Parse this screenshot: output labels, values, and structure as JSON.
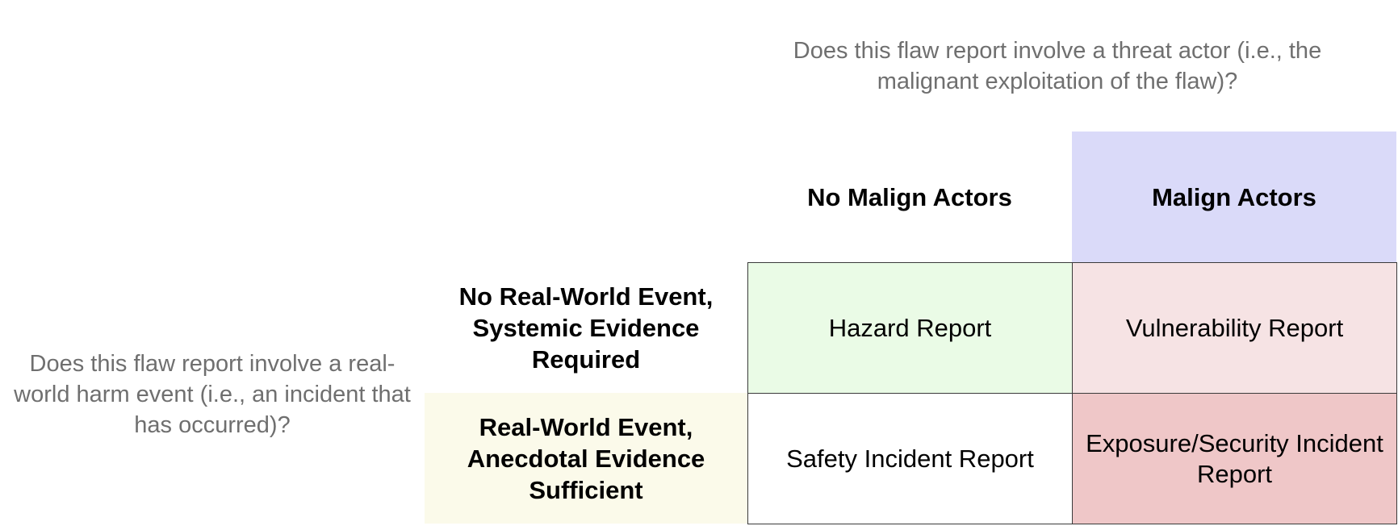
{
  "questions": {
    "top": "Does this flaw report involve a threat actor (i.e., the malignant exploitation of the flaw)?",
    "left": "Does this flaw report involve a real-world harm event (i.e., an incident that has occurred)?"
  },
  "columns": [
    {
      "label": "No Malign Actors",
      "color": "#ffffff"
    },
    {
      "label": "Malign Actors",
      "color": "#dadaf9"
    }
  ],
  "rows": [
    {
      "label": "No Real-World Event, Systemic Evidence Required",
      "color": "#ffffff"
    },
    {
      "label": "Real-World Event, Anecdotal Evidence Sufficient",
      "color": "#fbfaea"
    }
  ],
  "cells": {
    "hazard": {
      "label": "Hazard Report",
      "color": "#eafbe6"
    },
    "vulnerability": {
      "label": "Vulnerability Report",
      "color": "#f6e3e4"
    },
    "safety_incident": {
      "label": "Safety Incident Report",
      "color": "#ffffff"
    },
    "exposure_incident": {
      "label": "Exposure/Security Incident Report",
      "color": "#efc7c8"
    }
  }
}
